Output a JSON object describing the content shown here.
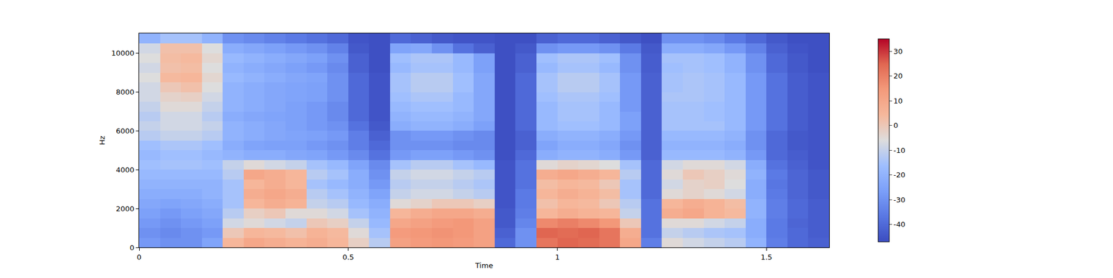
{
  "chart_data": {
    "type": "heatmap",
    "xlabel": "Time",
    "ylabel": "Hz",
    "xlim": [
      0,
      1.65
    ],
    "xticks": [
      0,
      0.5,
      1,
      1.5
    ],
    "ylim": [
      0,
      11025
    ],
    "yticks": [
      0,
      2000,
      4000,
      6000,
      8000,
      10000
    ],
    "zlim": [
      -47,
      35
    ],
    "zticks": [
      -40,
      -30,
      -20,
      -10,
      0,
      10,
      20,
      30
    ],
    "x_bins": [
      0,
      0.05,
      0.1,
      0.15,
      0.2,
      0.25,
      0.3,
      0.35,
      0.4,
      0.45,
      0.5,
      0.55,
      0.6,
      0.65,
      0.7,
      0.75,
      0.8,
      0.85,
      0.9,
      0.95,
      1.0,
      1.05,
      1.1,
      1.15,
      1.2,
      1.25,
      1.3,
      1.35,
      1.4,
      1.45,
      1.5,
      1.55,
      1.6,
      1.65
    ],
    "y_bins": [
      0,
      500,
      1000,
      1500,
      2000,
      2500,
      3000,
      3500,
      4000,
      4500,
      5000,
      5500,
      6000,
      6500,
      7000,
      7500,
      8000,
      8500,
      9000,
      9500,
      10000,
      10500,
      11025
    ],
    "cells": [
      [
        -28,
        -30,
        -30,
        -25,
        5,
        10,
        8,
        6,
        8,
        5,
        -2,
        -12,
        12,
        14,
        15,
        14,
        12,
        -40,
        -30,
        22,
        25,
        24,
        22,
        10,
        -35,
        -5,
        -8,
        -10,
        -12,
        -20,
        -35,
        -40,
        -42
      ],
      [
        -30,
        -32,
        -30,
        -28,
        0,
        5,
        4,
        2,
        6,
        4,
        -5,
        -15,
        14,
        15,
        16,
        15,
        12,
        -42,
        -30,
        25,
        24,
        25,
        22,
        8,
        -38,
        -10,
        -12,
        -14,
        -15,
        -22,
        -36,
        -40,
        -43
      ],
      [
        -28,
        -30,
        -28,
        -26,
        -8,
        -5,
        -8,
        -10,
        0,
        -2,
        -10,
        -18,
        10,
        12,
        14,
        15,
        12,
        -44,
        -33,
        18,
        20,
        18,
        15,
        0,
        -38,
        -5,
        -5,
        -8,
        -10,
        -22,
        -36,
        -41,
        -43
      ],
      [
        -26,
        -28,
        -26,
        -24,
        -12,
        -2,
        0,
        -5,
        -5,
        -8,
        -15,
        -20,
        5,
        8,
        10,
        10,
        8,
        -44,
        -35,
        5,
        8,
        6,
        5,
        -10,
        -38,
        8,
        10,
        6,
        4,
        -20,
        -35,
        -40,
        -43
      ],
      [
        -24,
        -25,
        -24,
        -22,
        -15,
        5,
        8,
        6,
        -10,
        -12,
        -18,
        -22,
        -5,
        -3,
        0,
        0,
        -2,
        -45,
        -36,
        2,
        5,
        4,
        0,
        -12,
        -38,
        5,
        8,
        6,
        3,
        -20,
        -35,
        -40,
        -43
      ],
      [
        -22,
        -22,
        -22,
        -20,
        -15,
        8,
        10,
        8,
        -12,
        -15,
        -20,
        -25,
        -10,
        -8,
        -8,
        -10,
        -12,
        -45,
        -36,
        5,
        8,
        6,
        3,
        -15,
        -40,
        -5,
        -3,
        -5,
        -8,
        -22,
        -36,
        -41,
        -44
      ],
      [
        -20,
        -20,
        -20,
        -20,
        -15,
        5,
        8,
        5,
        -15,
        -18,
        -22,
        -28,
        -12,
        -10,
        -10,
        -12,
        -14,
        -45,
        -38,
        3,
        5,
        4,
        0,
        -15,
        -40,
        -8,
        -3,
        -2,
        -6,
        -22,
        -37,
        -41,
        -44
      ],
      [
        -18,
        -18,
        -18,
        -18,
        -12,
        10,
        8,
        5,
        -12,
        -15,
        -22,
        -30,
        -10,
        -8,
        -8,
        -10,
        -12,
        -45,
        -38,
        8,
        10,
        8,
        5,
        -12,
        -40,
        -5,
        0,
        -2,
        -5,
        -20,
        -36,
        -41,
        -44
      ],
      [
        -16,
        -15,
        -15,
        -16,
        -10,
        -5,
        -8,
        -10,
        -15,
        -18,
        -25,
        -32,
        -15,
        -12,
        -12,
        -15,
        -18,
        -45,
        -38,
        -5,
        -3,
        -4,
        -6,
        -15,
        -40,
        -8,
        -5,
        -5,
        -8,
        -22,
        -38,
        -42,
        -45
      ],
      [
        -18,
        -16,
        -16,
        -18,
        -20,
        -22,
        -22,
        -24,
        -25,
        -28,
        -32,
        -38,
        -28,
        -26,
        -26,
        -28,
        -30,
        -46,
        -40,
        -22,
        -20,
        -20,
        -22,
        -28,
        -42,
        -18,
        -18,
        -18,
        -20,
        -28,
        -40,
        -43,
        -45
      ],
      [
        -16,
        -14,
        -14,
        -16,
        -22,
        -25,
        -26,
        -26,
        -28,
        -30,
        -35,
        -40,
        -30,
        -30,
        -30,
        -32,
        -32,
        -46,
        -42,
        -25,
        -22,
        -22,
        -24,
        -30,
        -42,
        -20,
        -20,
        -20,
        -22,
        -30,
        -40,
        -44,
        -45
      ],
      [
        -12,
        -10,
        -10,
        -12,
        -20,
        -22,
        -24,
        -25,
        -26,
        -28,
        -35,
        -42,
        -30,
        -28,
        -28,
        -30,
        -32,
        -46,
        -42,
        -22,
        -20,
        -20,
        -22,
        -28,
        -42,
        -18,
        -18,
        -18,
        -20,
        -30,
        -40,
        -44,
        -45
      ],
      [
        -10,
        -8,
        -8,
        -10,
        -20,
        -22,
        -24,
        -26,
        -28,
        -30,
        -38,
        -44,
        -22,
        -20,
        -20,
        -22,
        -26,
        -46,
        -40,
        -18,
        -16,
        -16,
        -18,
        -26,
        -42,
        -15,
        -15,
        -15,
        -18,
        -28,
        -38,
        -43,
        -45
      ],
      [
        -12,
        -8,
        -8,
        -12,
        -22,
        -24,
        -25,
        -26,
        -28,
        -32,
        -40,
        -45,
        -20,
        -18,
        -18,
        -20,
        -24,
        -46,
        -40,
        -18,
        -15,
        -15,
        -18,
        -26,
        -42,
        -15,
        -15,
        -16,
        -18,
        -28,
        -38,
        -43,
        -45
      ],
      [
        -10,
        -5,
        -5,
        -10,
        -20,
        -22,
        -24,
        -26,
        -28,
        -32,
        -40,
        -45,
        -18,
        -16,
        -16,
        -18,
        -24,
        -46,
        -40,
        -18,
        -15,
        -15,
        -18,
        -28,
        -42,
        -15,
        -15,
        -16,
        -18,
        -28,
        -38,
        -43,
        -45
      ],
      [
        -8,
        -3,
        -2,
        -8,
        -20,
        -22,
        -24,
        -25,
        -26,
        -30,
        -40,
        -45,
        -16,
        -14,
        -14,
        -18,
        -24,
        -46,
        -40,
        -16,
        -14,
        -14,
        -16,
        -28,
        -42,
        -14,
        -14,
        -15,
        -18,
        -28,
        -38,
        -43,
        -45
      ],
      [
        -8,
        0,
        2,
        -6,
        -20,
        -22,
        -24,
        -25,
        -26,
        -30,
        -40,
        -45,
        -15,
        -12,
        -12,
        -16,
        -24,
        -46,
        -40,
        -15,
        -12,
        -12,
        -15,
        -28,
        -42,
        -15,
        -14,
        -15,
        -18,
        -28,
        -38,
        -43,
        -45
      ],
      [
        -6,
        4,
        5,
        -4,
        -18,
        -20,
        -22,
        -24,
        -25,
        -30,
        -40,
        -45,
        -15,
        -12,
        -12,
        -16,
        -24,
        -46,
        -40,
        -15,
        -12,
        -12,
        -15,
        -28,
        -42,
        -15,
        -14,
        -15,
        -18,
        -28,
        -38,
        -43,
        -45
      ],
      [
        -8,
        2,
        3,
        -6,
        -20,
        -22,
        -24,
        -26,
        -28,
        -32,
        -42,
        -46,
        -18,
        -15,
        -15,
        -18,
        -26,
        -46,
        -42,
        -18,
        -15,
        -15,
        -18,
        -30,
        -43,
        -16,
        -15,
        -16,
        -20,
        -30,
        -40,
        -44,
        -46
      ],
      [
        -6,
        3,
        4,
        -4,
        -18,
        -20,
        -22,
        -24,
        -26,
        -30,
        -42,
        -46,
        -16,
        -14,
        -14,
        -18,
        -26,
        -46,
        -42,
        -16,
        -14,
        -14,
        -16,
        -30,
        -43,
        -15,
        -15,
        -16,
        -20,
        -30,
        -40,
        -44,
        -46
      ],
      [
        -8,
        2,
        2,
        -6,
        -22,
        -24,
        -26,
        -28,
        -30,
        -34,
        -44,
        -46,
        -25,
        -24,
        -30,
        -38,
        -42,
        -46,
        -44,
        -30,
        -28,
        -28,
        -30,
        -36,
        -44,
        -22,
        -22,
        -24,
        -28,
        -34,
        -42,
        -45,
        -46
      ],
      [
        -20,
        -15,
        -15,
        -20,
        -30,
        -32,
        -34,
        -36,
        -38,
        -40,
        -45,
        -46,
        -40,
        -42,
        -44,
        -45,
        -45,
        -46,
        -46,
        -42,
        -40,
        -40,
        -42,
        -44,
        -46,
        -30,
        -30,
        -32,
        -36,
        -40,
        -44,
        -46,
        -46
      ]
    ]
  }
}
